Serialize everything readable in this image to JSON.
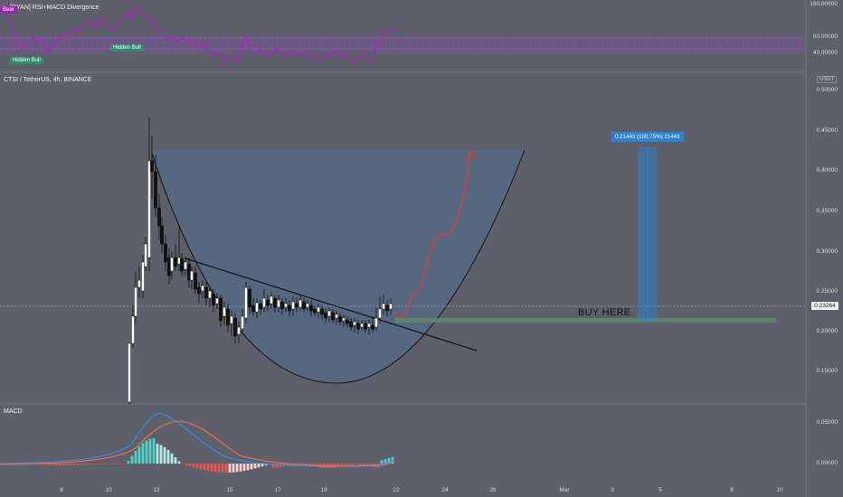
{
  "indicator_pane": {
    "title": "[DYAN] RSI+MACD Divergence",
    "bear_tag": "Bear",
    "hidden_bull_tags": [
      "Hidden Bull",
      "Hidden Bull"
    ],
    "axis_labels": [
      "100.00000",
      "60.00000",
      "40.00000"
    ]
  },
  "main_pane": {
    "symbol_title": "CTSI / TetherUS, 4h, BINANCE",
    "currency_label": "USDT",
    "price_labels": [
      "0.50000",
      "0.45000",
      "0.40000",
      "0.35000",
      "0.30000",
      "0.25000",
      "0.20000",
      "0.15000"
    ],
    "current_price": "0.23264",
    "measure_label": "0.21443 (100.75%) 21443",
    "buy_annotation": "BUY HERE"
  },
  "macd_pane": {
    "title": "MACD",
    "axis_labels": [
      "0.05000",
      "0.00000"
    ]
  },
  "time_axis": {
    "labels": [
      "8",
      "10",
      "12",
      "15",
      "17",
      "19",
      "22",
      "24",
      "26",
      "Mar",
      "3",
      "5",
      "8",
      "10"
    ]
  },
  "colors": {
    "background": "#5d606b",
    "rsi_line": "#9c27b0",
    "rsi_band": "#7b4fa0",
    "cup_fill": "#4a6a8a",
    "projection": "#e53935",
    "measure_bar": "#2b82d9",
    "buy_zone": "#5f7f6a",
    "macd_up": "#4fd1c5",
    "macd_down": "#ef5350"
  }
}
